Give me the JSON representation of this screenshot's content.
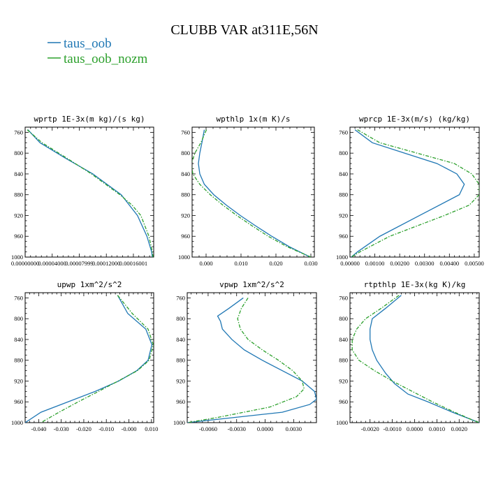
{
  "title": "CLUBB VAR at311E,56N",
  "legend": [
    {
      "name": "taus_oob",
      "color": "#1f77b4",
      "dash": "solid"
    },
    {
      "name": "taus_oob_nozm",
      "color": "#2ca02c",
      "dash": "dashed"
    }
  ],
  "chart_data": [
    {
      "type": "line",
      "title": "wprtp  1E-3x(m kg)/(s kg)",
      "ylim": [
        1000,
        750
      ],
      "yticks": [
        760,
        800,
        840,
        880,
        920,
        960,
        1000
      ],
      "xlim": [
        0,
        0.00019
      ],
      "xticks": [
        0,
        4e-05,
        8e-05,
        0.00012,
        0.00016
      ],
      "xtick_labels": [
        "0.00000000",
        "0.00004000",
        "0.00007999",
        "0.00012000",
        "0.00016001"
      ],
      "series": [
        {
          "name": "taus_oob",
          "y": [
            755,
            780,
            810,
            840,
            880,
            920,
            960,
            990,
            1000
          ],
          "x": [
            4e-06,
            2.2e-05,
            6e-05,
            0.0001,
            0.000142,
            0.000166,
            0.00018,
            0.000187,
            0.000188
          ]
        },
        {
          "name": "taus_oob_nozm",
          "y": [
            755,
            780,
            810,
            840,
            880,
            900,
            920,
            960,
            990,
            1000
          ],
          "x": [
            3e-06,
            2.5e-05,
            6.2e-05,
            9.8e-05,
            0.00014,
            0.000158,
            0.000171,
            0.000183,
            0.000188,
            0.000189
          ]
        }
      ]
    },
    {
      "type": "line",
      "title": "wpthlp  1x(m K)/s",
      "ylim": [
        1000,
        750
      ],
      "yticks": [
        760,
        800,
        840,
        880,
        920,
        960,
        1000
      ],
      "xlim": [
        -0.004,
        0.031
      ],
      "xticks": [
        0,
        0.01,
        0.02,
        0.03
      ],
      "xtick_labels": [
        "0.000",
        "0.010",
        "0.020",
        "0.030"
      ],
      "series": [
        {
          "name": "taus_oob",
          "y": [
            755,
            780,
            800,
            820,
            840,
            860,
            880,
            900,
            920,
            940,
            960,
            980,
            1000
          ],
          "x": [
            -0.0005,
            -0.0012,
            -0.0018,
            -0.0022,
            -0.0018,
            -0.0005,
            0.0022,
            0.0058,
            0.0098,
            0.0142,
            0.0188,
            0.0238,
            0.0298
          ]
        },
        {
          "name": "taus_oob_nozm",
          "y": [
            755,
            780,
            800,
            820,
            840,
            860,
            880,
            900,
            920,
            940,
            960,
            980,
            1000
          ],
          "x": [
            0.0001,
            -0.0015,
            -0.0032,
            -0.0042,
            -0.0038,
            -0.0018,
            0.0012,
            0.0048,
            0.0088,
            0.0132,
            0.0178,
            0.0232,
            0.03
          ]
        }
      ]
    },
    {
      "type": "line",
      "title": "wprcp  1E-3x(m/s) (kg/kg)",
      "ylim": [
        1000,
        750
      ],
      "yticks": [
        760,
        800,
        840,
        880,
        920,
        960,
        1000
      ],
      "xlim": [
        0,
        0.0052
      ],
      "xticks": [
        0,
        0.001,
        0.002,
        0.003,
        0.004,
        0.005
      ],
      "xtick_labels": [
        "0.00000",
        "0.00100",
        "0.00200",
        "0.00300",
        "0.00400",
        "0.00500"
      ],
      "series": [
        {
          "name": "taus_oob",
          "y": [
            755,
            780,
            800,
            820,
            840,
            860,
            880,
            920,
            960,
            990,
            1000
          ],
          "x": [
            0.0002,
            0.0009,
            0.0022,
            0.0035,
            0.0043,
            0.0046,
            0.0044,
            0.0028,
            0.0012,
            0.0003,
            5e-05
          ]
        },
        {
          "name": "taus_oob_nozm",
          "y": [
            755,
            780,
            800,
            820,
            840,
            860,
            880,
            900,
            920,
            960,
            990,
            1000
          ],
          "x": [
            0.0003,
            0.0012,
            0.0027,
            0.0042,
            0.0049,
            0.0052,
            0.0052,
            0.0048,
            0.0038,
            0.0016,
            0.0004,
            5e-05
          ]
        }
      ]
    },
    {
      "type": "line",
      "title": "upwp  1xm^2/s^2",
      "ylim": [
        1000,
        750
      ],
      "yticks": [
        760,
        800,
        840,
        880,
        920,
        960,
        1000
      ],
      "xlim": [
        -0.046,
        0.011
      ],
      "xticks": [
        -0.04,
        -0.03,
        -0.02,
        -0.01,
        0,
        0.01
      ],
      "xtick_labels": [
        "-0.040",
        "-0.030",
        "-0.020",
        "-0.010",
        "-0.000",
        "0.010"
      ],
      "series": [
        {
          "name": "taus_oob",
          "y": [
            755,
            790,
            820,
            850,
            880,
            900,
            920,
            940,
            960,
            980,
            1000
          ],
          "x": [
            -0.005,
            -0.0005,
            0.0075,
            0.0102,
            0.0085,
            0.0035,
            -0.0045,
            -0.015,
            -0.027,
            -0.039,
            -0.046
          ]
        },
        {
          "name": "taus_oob_nozm",
          "y": [
            755,
            790,
            820,
            850,
            880,
            900,
            920,
            940,
            960,
            980,
            1000
          ],
          "x": [
            -0.005,
            0.0015,
            0.0085,
            0.0108,
            0.009,
            0.0038,
            -0.0048,
            -0.0135,
            -0.0225,
            -0.031,
            -0.039
          ]
        }
      ]
    },
    {
      "type": "line",
      "title": "vpwp  1xm^2/s^2",
      "ylim": [
        1000,
        750
      ],
      "yticks": [
        760,
        800,
        840,
        880,
        920,
        960,
        1000
      ],
      "xlim": [
        -0.0082,
        0.0054
      ],
      "xticks": [
        -0.006,
        -0.003,
        0,
        0.003
      ],
      "xtick_labels": [
        "-0.0060",
        "-0.0030",
        "0.0000",
        "0.0030"
      ],
      "series": [
        {
          "name": "taus_oob",
          "y": [
            760,
            780,
            795,
            805,
            820,
            840,
            860,
            880,
            900,
            920,
            940,
            955,
            965,
            980,
            1000
          ],
          "x": [
            -0.0023,
            -0.0038,
            -0.005,
            -0.0047,
            -0.0045,
            -0.0035,
            -0.0022,
            -0.0003,
            0.0018,
            0.0039,
            0.0052,
            0.0054,
            0.0047,
            0.0018,
            -0.0082
          ]
        },
        {
          "name": "taus_oob_nozm",
          "y": [
            760,
            780,
            800,
            820,
            840,
            860,
            880,
            900,
            920,
            935,
            950,
            970,
            990,
            1000
          ],
          "x": [
            -0.0018,
            -0.0025,
            -0.0029,
            -0.0026,
            -0.0018,
            -0.0003,
            0.0014,
            0.0029,
            0.0039,
            0.0041,
            0.0033,
            0.0005,
            -0.005,
            -0.0082
          ]
        }
      ]
    },
    {
      "type": "line",
      "title": "rtpthlp  1E-3x(kg K)/kg",
      "ylim": [
        1000,
        750
      ],
      "yticks": [
        760,
        800,
        840,
        880,
        920,
        960,
        1000
      ],
      "xlim": [
        -0.0029,
        0.0029
      ],
      "xticks": [
        -0.002,
        -0.001,
        0,
        0.001,
        0.002
      ],
      "xtick_labels": [
        "-0.0020",
        "-0.0010",
        "0.0000",
        "0.0010",
        "0.0020"
      ],
      "series": [
        {
          "name": "taus_oob",
          "y": [
            755,
            780,
            800,
            820,
            840,
            860,
            880,
            905,
            925,
            945,
            960,
            980,
            995,
            1000
          ],
          "x": [
            -0.0006,
            -0.0013,
            -0.0019,
            -0.002,
            -0.002,
            -0.0019,
            -0.0017,
            -0.0013,
            -0.0009,
            -0.0003,
            0.0006,
            0.0017,
            0.0026,
            0.0029
          ]
        },
        {
          "name": "taus_oob_nozm",
          "y": [
            755,
            780,
            800,
            820,
            840,
            860,
            880,
            900,
            920,
            940,
            960,
            980,
            995,
            1000
          ],
          "x": [
            -0.0007,
            -0.0015,
            -0.0022,
            -0.0026,
            -0.0028,
            -0.0028,
            -0.0025,
            -0.0018,
            -0.001,
            -0.0001,
            0.0008,
            0.0018,
            0.0026,
            0.0029
          ]
        }
      ]
    }
  ]
}
